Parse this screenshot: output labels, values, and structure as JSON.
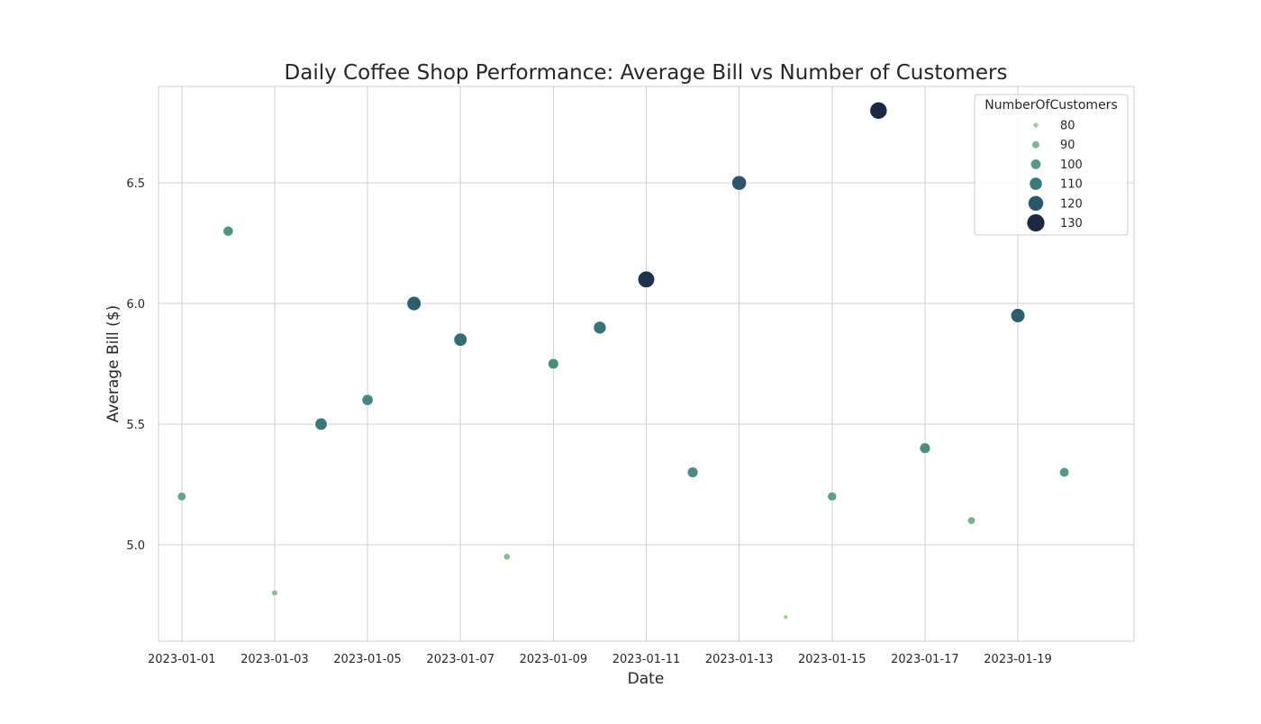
{
  "chart_data": {
    "type": "scatter",
    "title": "Daily Coffee Shop Performance: Average Bill vs Number of Customers",
    "xlabel": "Date",
    "ylabel": "Average Bill ($)",
    "x_ticks": [
      "2023-01-01",
      "2023-01-03",
      "2023-01-05",
      "2023-01-07",
      "2023-01-09",
      "2023-01-11",
      "2023-01-13",
      "2023-01-15",
      "2023-01-17",
      "2023-01-19"
    ],
    "y_ticks": [
      "5.0",
      "5.5",
      "6.0",
      "6.5"
    ],
    "xlim": [
      "2022-12-31 12:00",
      "2023-01-21 12:00"
    ],
    "ylim": [
      4.6,
      6.9
    ],
    "grid": true,
    "legend": {
      "title": "NumberOfCustomers",
      "placement": "top-right",
      "entries": [
        {
          "label": "80",
          "value": 80
        },
        {
          "label": "90",
          "value": 90
        },
        {
          "label": "100",
          "value": 100
        },
        {
          "label": "110",
          "value": 110
        },
        {
          "label": "120",
          "value": 120
        },
        {
          "label": "130",
          "value": 130
        }
      ]
    },
    "size_hue_variable": "NumberOfCustomers",
    "color_scale": [
      "#a2cf99",
      "#7bb88d",
      "#56998a",
      "#3b7a7c",
      "#2a5768",
      "#1b2943"
    ],
    "points": [
      {
        "date": "2023-01-01",
        "average_bill": 5.2,
        "customers": 96
      },
      {
        "date": "2023-01-02",
        "average_bill": 6.3,
        "customers": 102
      },
      {
        "date": "2023-01-03",
        "average_bill": 4.8,
        "customers": 86
      },
      {
        "date": "2023-01-04",
        "average_bill": 5.5,
        "customers": 110
      },
      {
        "date": "2023-01-05",
        "average_bill": 5.6,
        "customers": 106
      },
      {
        "date": "2023-01-06",
        "average_bill": 6.0,
        "customers": 118
      },
      {
        "date": "2023-01-07",
        "average_bill": 5.85,
        "customers": 114
      },
      {
        "date": "2023-01-08",
        "average_bill": 4.95,
        "customers": 88
      },
      {
        "date": "2023-01-09",
        "average_bill": 5.75,
        "customers": 104
      },
      {
        "date": "2023-01-10",
        "average_bill": 5.9,
        "customers": 112
      },
      {
        "date": "2023-01-11",
        "average_bill": 6.1,
        "customers": 128
      },
      {
        "date": "2023-01-12",
        "average_bill": 5.3,
        "customers": 104
      },
      {
        "date": "2023-01-13",
        "average_bill": 6.5,
        "customers": 120
      },
      {
        "date": "2023-01-14",
        "average_bill": 4.7,
        "customers": 80
      },
      {
        "date": "2023-01-15",
        "average_bill": 5.2,
        "customers": 98
      },
      {
        "date": "2023-01-16",
        "average_bill": 6.8,
        "customers": 130
      },
      {
        "date": "2023-01-17",
        "average_bill": 5.4,
        "customers": 104
      },
      {
        "date": "2023-01-18",
        "average_bill": 5.1,
        "customers": 92
      },
      {
        "date": "2023-01-19",
        "average_bill": 5.95,
        "customers": 118
      },
      {
        "date": "2023-01-20",
        "average_bill": 5.3,
        "customers": 100
      }
    ]
  }
}
